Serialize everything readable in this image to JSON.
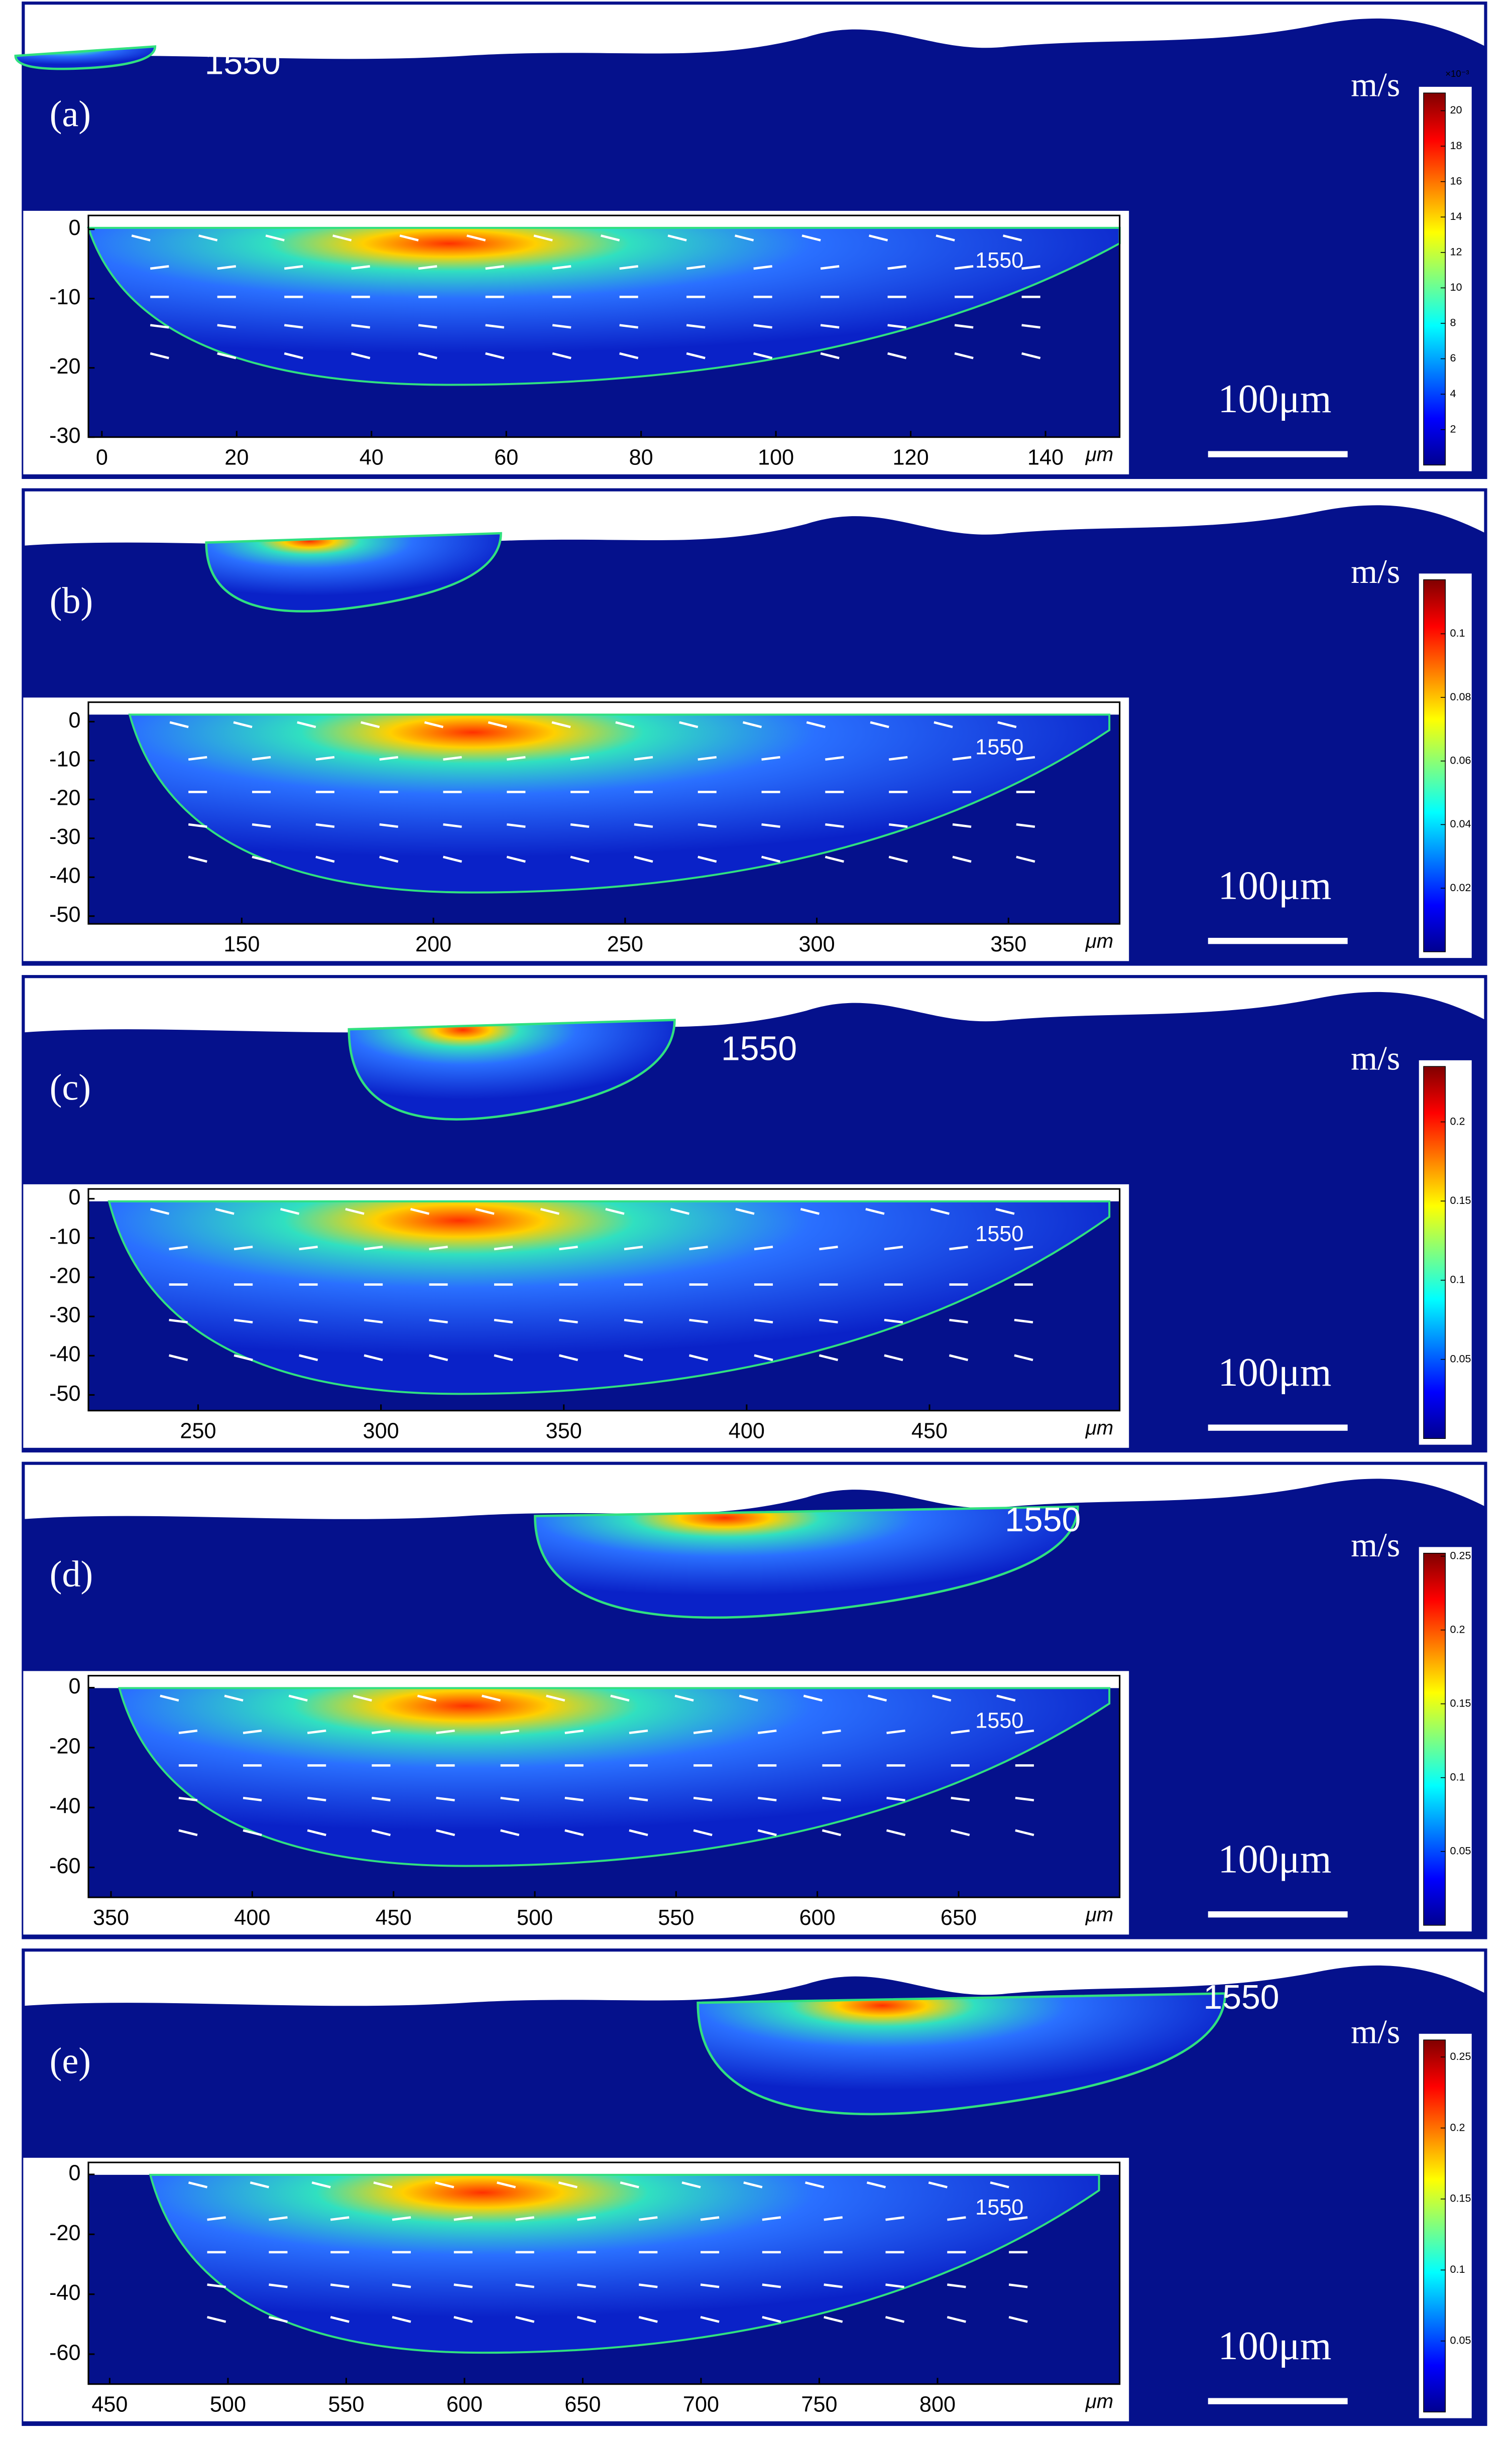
{
  "chart_data": [
    {
      "type": "heatmap",
      "panel_label": "(a)",
      "colorbar_title": "m/s",
      "colorbar_multiplier": "×10⁻³",
      "colorbar_ticks": [
        2,
        4,
        6,
        8,
        10,
        12,
        14,
        16,
        18,
        20
      ],
      "clim": [
        0,
        21
      ],
      "scale_bar_label": "100μm",
      "contour_label": "1550",
      "xlabel": "μm",
      "xticks": [
        0,
        20,
        40,
        60,
        80,
        100,
        120,
        140
      ],
      "xlim": [
        -2,
        151
      ],
      "yticks": [
        0,
        -10,
        -20,
        -30
      ],
      "ylim": [
        -30,
        2
      ]
    },
    {
      "type": "heatmap",
      "panel_label": "(b)",
      "colorbar_title": "m/s",
      "colorbar_ticks": [
        0.02,
        0.04,
        0.06,
        0.08,
        0.1
      ],
      "clim": [
        0,
        0.117
      ],
      "scale_bar_label": "100μm",
      "contour_label": "1550",
      "xlabel": "μm",
      "xticks": [
        150,
        200,
        250,
        300,
        350
      ],
      "xlim": [
        110,
        379
      ],
      "yticks": [
        0,
        -10,
        -20,
        -30,
        -40,
        -50
      ],
      "ylim": [
        -52,
        5
      ]
    },
    {
      "type": "heatmap",
      "panel_label": "(c)",
      "colorbar_title": "m/s",
      "colorbar_ticks": [
        0.05,
        0.1,
        0.15,
        0.2
      ],
      "clim": [
        0,
        0.235
      ],
      "scale_bar_label": "100μm",
      "contour_label": "1550",
      "xlabel": "μm",
      "xticks": [
        250,
        300,
        350,
        400,
        450
      ],
      "xlim": [
        220,
        502
      ],
      "yticks": [
        0,
        -10,
        -20,
        -30,
        -40,
        -50
      ],
      "ylim": [
        -54,
        2.5
      ]
    },
    {
      "type": "heatmap",
      "panel_label": "(d)",
      "colorbar_title": "m/s",
      "colorbar_ticks": [
        0.05,
        0.1,
        0.15,
        0.2,
        0.25
      ],
      "clim": [
        0,
        0.252
      ],
      "scale_bar_label": "100μm",
      "contour_label": "1550",
      "xlabel": "μm",
      "xticks": [
        350,
        400,
        450,
        500,
        550,
        600,
        650
      ],
      "xlim": [
        342,
        707
      ],
      "yticks": [
        0,
        -20,
        -40,
        -60
      ],
      "ylim": [
        -70,
        4
      ]
    },
    {
      "type": "heatmap",
      "panel_label": "(e)",
      "colorbar_title": "m/s",
      "colorbar_ticks": [
        0.05,
        0.1,
        0.15,
        0.2,
        0.25
      ],
      "clim": [
        0,
        0.262
      ],
      "scale_bar_label": "100μm",
      "contour_label": "1550",
      "xlabel": "μm",
      "xticks": [
        450,
        500,
        550,
        600,
        650,
        700,
        750,
        800
      ],
      "xlim": [
        441,
        877
      ],
      "yticks": [
        0,
        -20,
        -40,
        -60
      ],
      "ylim": [
        -70,
        4
      ]
    }
  ]
}
